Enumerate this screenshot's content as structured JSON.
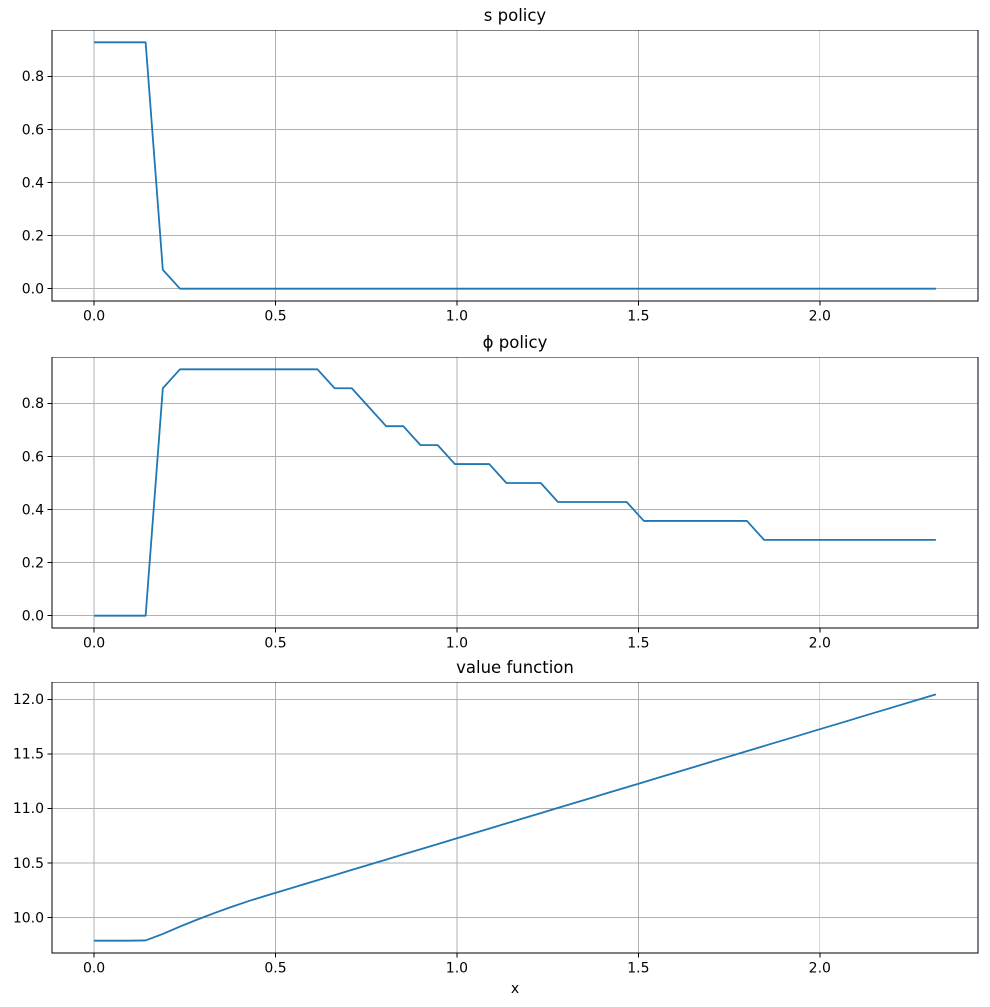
{
  "figure": {
    "background": "#ffffff",
    "line_color": "#1f77b4",
    "grid_color": "#b0b0b0",
    "frame_color": "#000000",
    "text_color": "#000000"
  },
  "chart_data": [
    {
      "type": "line",
      "title": "s policy",
      "xlabel": "",
      "ylabel": "",
      "grid": true,
      "legend": null,
      "xlim": [
        -0.116,
        2.436
      ],
      "ylim": [
        -0.0464,
        0.975
      ],
      "xticks": [
        0.0,
        0.5,
        1.0,
        1.5,
        2.0
      ],
      "xtick_labels": [
        "0.0",
        "0.5",
        "1.0",
        "1.5",
        "2.0"
      ],
      "yticks": [
        0.0,
        0.2,
        0.4,
        0.6,
        0.8
      ],
      "ytick_labels": [
        "0.0",
        "0.2",
        "0.4",
        "0.6",
        "0.8"
      ],
      "x": [
        0,
        0.0473,
        0.0947,
        0.142,
        0.1894,
        0.2367,
        0.2841,
        0.3314,
        0.3788,
        0.4261,
        0.4735,
        0.5208,
        0.5682,
        0.6155,
        0.6629,
        0.7102,
        0.7576,
        0.8049,
        0.8522,
        0.8996,
        0.9469,
        0.9943,
        1.0416,
        1.089,
        1.1363,
        1.1837,
        1.231,
        1.2784,
        1.3257,
        1.3731,
        1.4204,
        1.4678,
        1.5151,
        1.5624,
        1.6098,
        1.6571,
        1.7045,
        1.7518,
        1.7992,
        1.8465,
        1.8939,
        1.9412,
        1.9886,
        2.0359,
        2.0833,
        2.1306,
        2.178,
        2.2253,
        2.2727,
        2.32
      ],
      "y": [
        0.9286,
        0.9286,
        0.9286,
        0.9286,
        0.0714,
        0,
        0,
        0,
        0,
        0,
        0,
        0,
        0,
        0,
        0,
        0,
        0,
        0,
        0,
        0,
        0,
        0,
        0,
        0,
        0,
        0,
        0,
        0,
        0,
        0,
        0,
        0,
        0,
        0,
        0,
        0,
        0,
        0,
        0,
        0,
        0,
        0,
        0,
        0,
        0,
        0,
        0,
        0,
        0,
        0
      ]
    },
    {
      "type": "line",
      "title": "ϕ policy",
      "xlabel": "",
      "ylabel": "",
      "grid": true,
      "legend": null,
      "xlim": [
        -0.116,
        2.436
      ],
      "ylim": [
        -0.0464,
        0.975
      ],
      "xticks": [
        0.0,
        0.5,
        1.0,
        1.5,
        2.0
      ],
      "xtick_labels": [
        "0.0",
        "0.5",
        "1.0",
        "1.5",
        "2.0"
      ],
      "yticks": [
        0.0,
        0.2,
        0.4,
        0.6,
        0.8
      ],
      "ytick_labels": [
        "0.0",
        "0.2",
        "0.4",
        "0.6",
        "0.8"
      ],
      "x": [
        0,
        0.0473,
        0.0947,
        0.142,
        0.1894,
        0.2367,
        0.2841,
        0.3314,
        0.3788,
        0.4261,
        0.4735,
        0.5208,
        0.5682,
        0.6155,
        0.6629,
        0.7102,
        0.7576,
        0.8049,
        0.8522,
        0.8996,
        0.9469,
        0.9943,
        1.0416,
        1.089,
        1.1363,
        1.1837,
        1.231,
        1.2784,
        1.3257,
        1.3731,
        1.4204,
        1.4678,
        1.5151,
        1.5624,
        1.6098,
        1.6571,
        1.7045,
        1.7518,
        1.7992,
        1.8465,
        1.8939,
        1.9412,
        1.9886,
        2.0359,
        2.0833,
        2.1306,
        2.178,
        2.2253,
        2.2727,
        2.32
      ],
      "y": [
        0,
        0,
        0,
        0,
        0.8571,
        0.9286,
        0.9286,
        0.9286,
        0.9286,
        0.9286,
        0.9286,
        0.9286,
        0.9286,
        0.9286,
        0.8571,
        0.8571,
        0.7857,
        0.7143,
        0.7143,
        0.6429,
        0.6429,
        0.5714,
        0.5714,
        0.5714,
        0.5,
        0.5,
        0.5,
        0.4286,
        0.4286,
        0.4286,
        0.4286,
        0.4286,
        0.3571,
        0.3571,
        0.3571,
        0.3571,
        0.3571,
        0.3571,
        0.3571,
        0.2857,
        0.2857,
        0.2857,
        0.2857,
        0.2857,
        0.2857,
        0.2857,
        0.2857,
        0.2857,
        0.2857,
        0.2857
      ]
    },
    {
      "type": "line",
      "title": "value function",
      "xlabel": "x",
      "ylabel": "",
      "grid": true,
      "legend": null,
      "xlim": [
        -0.116,
        2.436
      ],
      "ylim": [
        9.675,
        12.159
      ],
      "xticks": [
        0.0,
        0.5,
        1.0,
        1.5,
        2.0
      ],
      "xtick_labels": [
        "0.0",
        "0.5",
        "1.0",
        "1.5",
        "2.0"
      ],
      "yticks": [
        10.0,
        10.5,
        11.0,
        11.5,
        12.0
      ],
      "ytick_labels": [
        "10.0",
        "10.5",
        "11.0",
        "11.5",
        "12.0"
      ],
      "x": [
        0,
        0.0473,
        0.0947,
        0.142,
        0.1894,
        0.2367,
        0.2841,
        0.3314,
        0.3788,
        0.4261,
        0.4735,
        0.5208,
        0.5682,
        0.6155,
        0.6629,
        0.7102,
        0.7576,
        0.8049,
        0.8522,
        0.8996,
        0.9469,
        0.9943,
        1.0416,
        1.089,
        1.1363,
        1.1837,
        1.231,
        1.2784,
        1.3257,
        1.3731,
        1.4204,
        1.4678,
        1.5151,
        1.5624,
        1.6098,
        1.6571,
        1.7045,
        1.7518,
        1.7992,
        1.8465,
        1.8939,
        1.9412,
        1.9886,
        2.0359,
        2.0833,
        2.1306,
        2.178,
        2.2253,
        2.2727,
        2.32
      ],
      "y": [
        9.788,
        9.788,
        9.788,
        9.79,
        9.85,
        9.917,
        9.981,
        10.041,
        10.098,
        10.151,
        10.2,
        10.247,
        10.295,
        10.342,
        10.389,
        10.437,
        10.484,
        10.531,
        10.579,
        10.626,
        10.673,
        10.721,
        10.768,
        10.815,
        10.863,
        10.91,
        10.957,
        11.005,
        11.052,
        11.099,
        11.147,
        11.194,
        11.241,
        11.289,
        11.336,
        11.383,
        11.431,
        11.478,
        11.525,
        11.573,
        11.62,
        11.667,
        11.715,
        11.762,
        11.809,
        11.857,
        11.904,
        11.951,
        11.999,
        12.046
      ]
    }
  ]
}
